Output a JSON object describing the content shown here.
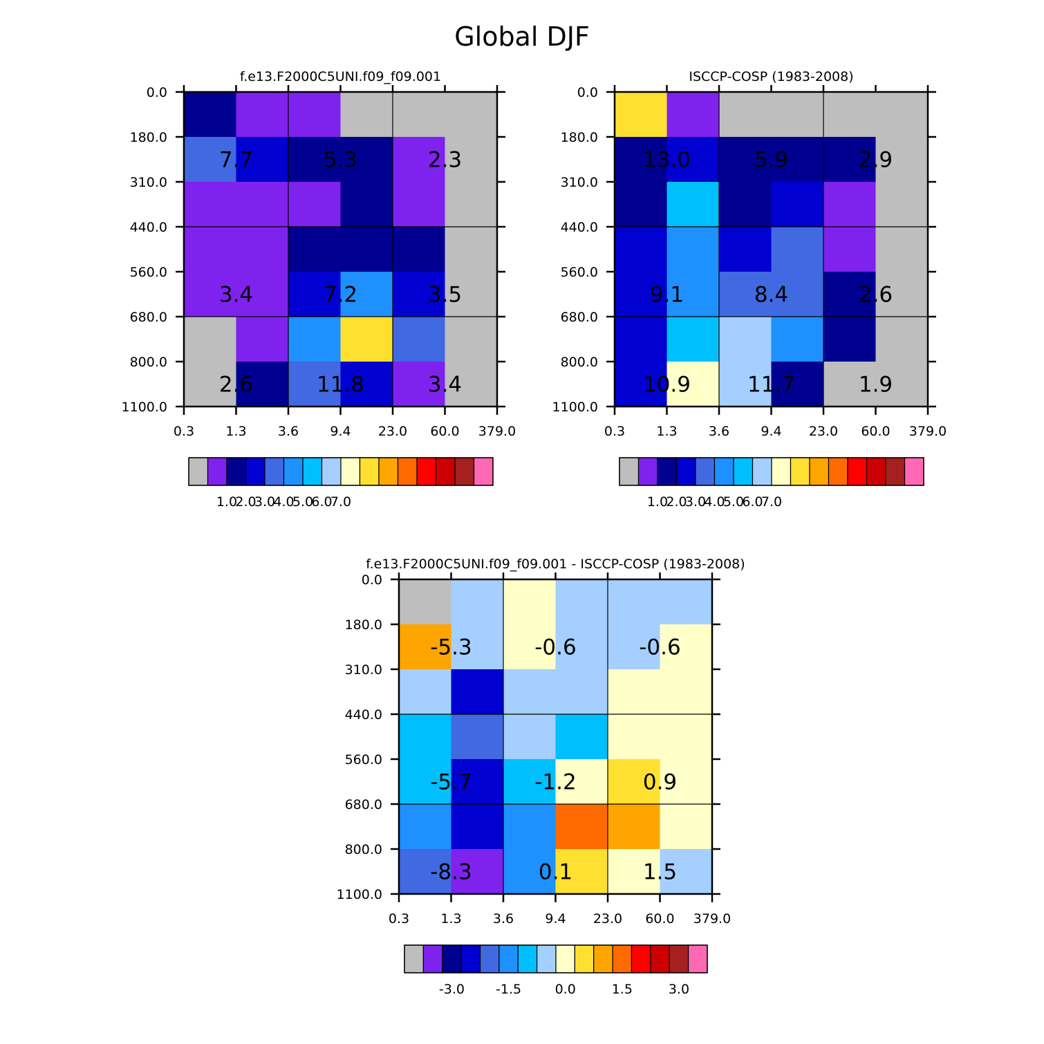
{
  "figure_title": "Global DJF",
  "colors": {
    "gray": "#bebebe",
    "purple": "#7f22ee",
    "navy": "#000090",
    "blue": "#0000d0",
    "royal": "#4169e1",
    "dodger": "#1e90ff",
    "skyblue": "#00bfff",
    "lightblue": "#a4cfff",
    "cream": "#ffffc8",
    "gold": "#ffe030",
    "orange": "#ffa500",
    "darkorange": "#ff6a00",
    "red": "#ff0000",
    "crimson": "#cc0000",
    "brown": "#a52020",
    "pink": "#ff69b4"
  },
  "palette": [
    "gray",
    "purple",
    "navy",
    "blue",
    "royal",
    "dodger",
    "skyblue",
    "lightblue",
    "cream",
    "gold",
    "orange",
    "darkorange",
    "red",
    "crimson",
    "brown",
    "pink"
  ],
  "chart_data": [
    {
      "type": "heatmap",
      "title": "f.e13.F2000C5UNI.f09_f09.001",
      "x_ticks": [
        "0.3",
        "1.3",
        "3.6",
        "9.4",
        "23.0",
        "60.0",
        "379.0"
      ],
      "y_ticks": [
        "0.0",
        "180.0",
        "310.0",
        "440.0",
        "560.0",
        "680.0",
        "800.0",
        "1100.0"
      ],
      "cells": [
        [
          "navy",
          "purple",
          "purple",
          "gray",
          "gray",
          "gray"
        ],
        [
          "royal",
          "blue",
          "navy",
          "navy",
          "purple",
          "gray"
        ],
        [
          "purple",
          "purple",
          "purple",
          "navy",
          "purple",
          "gray"
        ],
        [
          "purple",
          "purple",
          "navy",
          "navy",
          "navy",
          "gray"
        ],
        [
          "purple",
          "purple",
          "blue",
          "dodger",
          "blue",
          "gray"
        ],
        [
          "gray",
          "purple",
          "dodger",
          "gold",
          "royal",
          "gray"
        ],
        [
          "gray",
          "navy",
          "royal",
          "blue",
          "purple",
          "gray"
        ]
      ],
      "annotations": [
        {
          "col": 0,
          "row": 1,
          "text": "7.7"
        },
        {
          "col": 1,
          "row": 1,
          "text": "5.3"
        },
        {
          "col": 2,
          "row": 1,
          "text": "2.3"
        },
        {
          "col": 0,
          "row": 4,
          "text": "3.4"
        },
        {
          "col": 1,
          "row": 4,
          "text": "7.2"
        },
        {
          "col": 2,
          "row": 4,
          "text": "3.5"
        },
        {
          "col": 0,
          "row": 6,
          "text": "2.6"
        },
        {
          "col": 1,
          "row": 6,
          "text": "11.8"
        },
        {
          "col": 2,
          "row": 6,
          "text": "3.4"
        }
      ],
      "colorbar_labels": [
        "1.0",
        "2.0",
        "3.0",
        "4.0",
        "5.0",
        "6.0",
        "7.0"
      ]
    },
    {
      "type": "heatmap",
      "title": "ISCCP-COSP (1983-2008)",
      "x_ticks": [
        "0.3",
        "1.3",
        "3.6",
        "9.4",
        "23.0",
        "60.0",
        "379.0"
      ],
      "y_ticks": [
        "0.0",
        "180.0",
        "310.0",
        "440.0",
        "560.0",
        "680.0",
        "800.0",
        "1100.0"
      ],
      "cells": [
        [
          "gold",
          "purple",
          "gray",
          "gray",
          "gray",
          "gray"
        ],
        [
          "navy",
          "blue",
          "navy",
          "navy",
          "navy",
          "gray"
        ],
        [
          "navy",
          "skyblue",
          "navy",
          "blue",
          "purple",
          "gray"
        ],
        [
          "blue",
          "dodger",
          "blue",
          "royal",
          "purple",
          "gray"
        ],
        [
          "blue",
          "dodger",
          "royal",
          "royal",
          "navy",
          "gray"
        ],
        [
          "blue",
          "skyblue",
          "lightblue",
          "dodger",
          "navy",
          "gray"
        ],
        [
          "blue",
          "cream",
          "lightblue",
          "navy",
          "gray",
          "gray"
        ]
      ],
      "annotations": [
        {
          "col": 0,
          "row": 1,
          "text": "13.0"
        },
        {
          "col": 1,
          "row": 1,
          "text": "5.9"
        },
        {
          "col": 2,
          "row": 1,
          "text": "2.9"
        },
        {
          "col": 0,
          "row": 4,
          "text": "9.1"
        },
        {
          "col": 1,
          "row": 4,
          "text": "8.4"
        },
        {
          "col": 2,
          "row": 4,
          "text": "2.6"
        },
        {
          "col": 0,
          "row": 6,
          "text": "10.9"
        },
        {
          "col": 1,
          "row": 6,
          "text": "11.7"
        },
        {
          "col": 2,
          "row": 6,
          "text": "1.9"
        }
      ],
      "colorbar_labels": [
        "1.0",
        "2.0",
        "3.0",
        "4.0",
        "5.0",
        "6.0",
        "7.0"
      ]
    },
    {
      "type": "heatmap",
      "title": "f.e13.F2000C5UNI.f09_f09.001 - ISCCP-COSP (1983-2008)",
      "x_ticks": [
        "0.3",
        "1.3",
        "3.6",
        "9.4",
        "23.0",
        "60.0",
        "379.0"
      ],
      "y_ticks": [
        "0.0",
        "180.0",
        "310.0",
        "440.0",
        "560.0",
        "680.0",
        "800.0",
        "1100.0"
      ],
      "cells": [
        [
          "gray",
          "lightblue",
          "cream",
          "lightblue",
          "lightblue",
          "lightblue"
        ],
        [
          "orange",
          "lightblue",
          "cream",
          "lightblue",
          "lightblue",
          "cream"
        ],
        [
          "lightblue",
          "blue",
          "lightblue",
          "lightblue",
          "cream",
          "cream"
        ],
        [
          "skyblue",
          "royal",
          "lightblue",
          "skyblue",
          "cream",
          "cream"
        ],
        [
          "skyblue",
          "blue",
          "skyblue",
          "cream",
          "gold",
          "cream"
        ],
        [
          "dodger",
          "blue",
          "dodger",
          "darkorange",
          "orange",
          "cream"
        ],
        [
          "royal",
          "purple",
          "dodger",
          "gold",
          "cream",
          "lightblue"
        ]
      ],
      "annotations": [
        {
          "col": 0,
          "row": 1,
          "text": "-5.3"
        },
        {
          "col": 1,
          "row": 1,
          "text": "-0.6"
        },
        {
          "col": 2,
          "row": 1,
          "text": "-0.6"
        },
        {
          "col": 0,
          "row": 4,
          "text": "-5.7"
        },
        {
          "col": 1,
          "row": 4,
          "text": "-1.2"
        },
        {
          "col": 2,
          "row": 4,
          "text": "0.9"
        },
        {
          "col": 0,
          "row": 6,
          "text": "-8.3"
        },
        {
          "col": 1,
          "row": 6,
          "text": "0.1"
        },
        {
          "col": 2,
          "row": 6,
          "text": "1.5"
        }
      ],
      "colorbar_labels": [
        "-3.0",
        "-1.5",
        "0.0",
        "1.5",
        "3.0"
      ]
    }
  ]
}
